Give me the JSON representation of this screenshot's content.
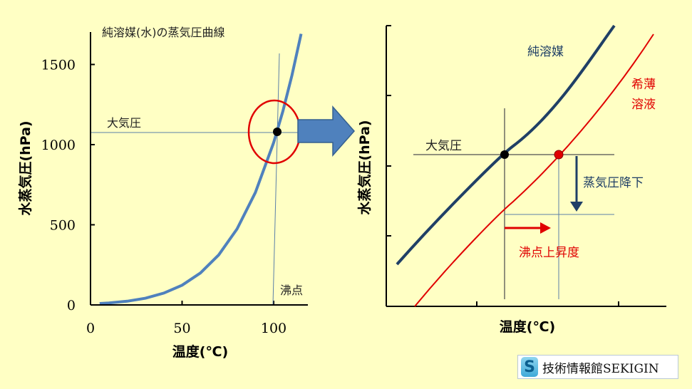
{
  "chart_data": [
    {
      "type": "line",
      "title": "純溶媒(水)の蒸気圧曲線",
      "xlabel": "温度(℃)",
      "ylabel": "水蒸気圧(hPa)",
      "xlim": [
        0,
        120
      ],
      "ylim": [
        0,
        1700
      ],
      "x_ticks": [
        "0",
        "50",
        "100"
      ],
      "y_ticks": [
        "0",
        "500",
        "1000",
        "1500"
      ],
      "series": [
        {
          "x": [
            5,
            10,
            20,
            30,
            40,
            50,
            60,
            70,
            80,
            90,
            100,
            105,
            110,
            115
          ],
          "y": [
            9,
            12,
            23,
            42,
            74,
            123,
            199,
            312,
            474,
            701,
            1013,
            1208,
            1433,
            1691
          ]
        }
      ],
      "annotations": [
        {
          "text": "大気圧",
          "y": 1013
        },
        {
          "text": "沸点",
          "x": 100
        }
      ],
      "color": "#4f81bd"
    },
    {
      "type": "line",
      "xlabel": "温度(℃)",
      "ylabel": "水蒸気圧(hPa)",
      "series": [
        {
          "name": "純溶媒",
          "x": [
            0,
            1,
            2,
            3,
            4,
            5
          ],
          "y": [
            0.9,
            1.7,
            2.55,
            3.45,
            4.4,
            5.4
          ]
        },
        {
          "name": "希薄\n溶液",
          "x": [
            0.4,
            1.4,
            2.4,
            3.4,
            4.4,
            5.4
          ],
          "y": [
            0.9,
            1.7,
            2.55,
            3.45,
            4.4,
            5.4
          ]
        }
      ],
      "annotations": [
        "大気圧",
        "蒸気圧降下",
        "沸点上昇度"
      ],
      "colors": {
        "pure": "#1f3f66",
        "solution": "#e00000"
      }
    }
  ],
  "left_chart": {
    "title": "純溶媒(水)の蒸気圧曲線",
    "ylabel": "水蒸気圧(hPa)",
    "xlabel": "温度(℃)",
    "atm_label": "大気圧",
    "bp_label": "沸点"
  },
  "right_chart": {
    "ylabel": "水蒸気圧(hPa)",
    "xlabel": "温度(℃)",
    "pure_label": "純溶媒",
    "solution_label_1": "希薄",
    "solution_label_2": "溶液",
    "atm_label": "大気圧",
    "vp_lowering_label": "蒸気圧降下",
    "bp_elevation_label": "沸点上昇度"
  },
  "watermark": {
    "icon": "S",
    "text": "技術情報館SEKIGIN"
  }
}
